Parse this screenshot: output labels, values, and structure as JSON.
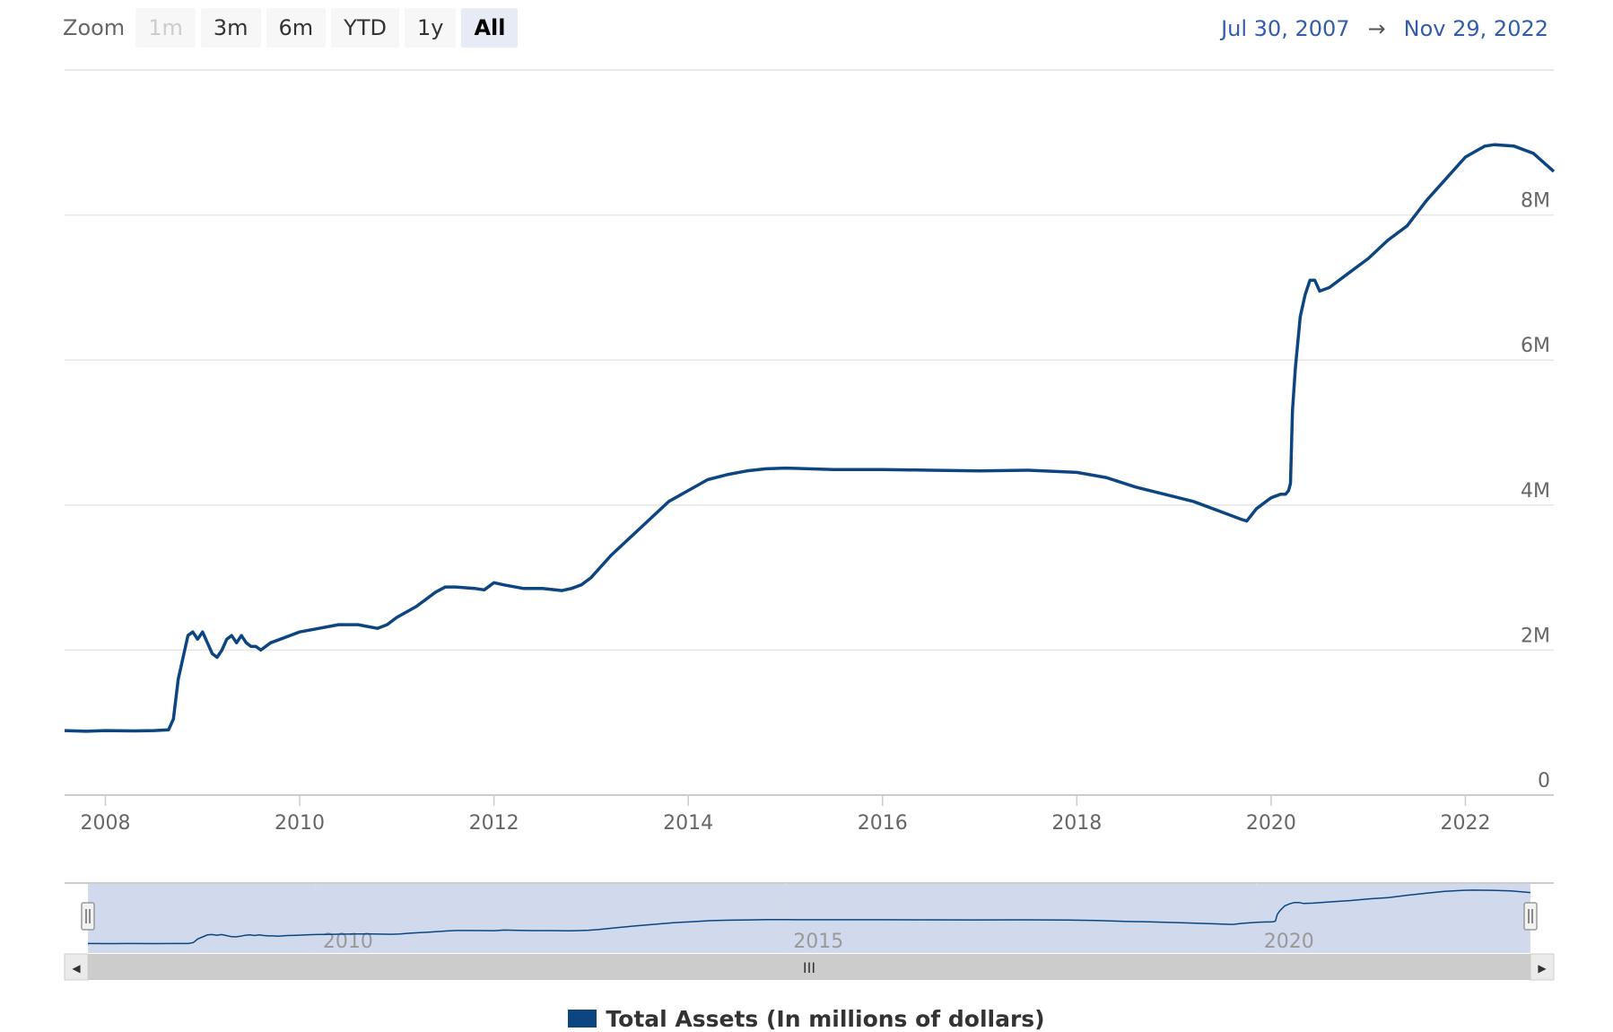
{
  "range_selector": {
    "zoom_label": "Zoom",
    "buttons": [
      {
        "label": "1m",
        "state": "disabled"
      },
      {
        "label": "3m",
        "state": "normal"
      },
      {
        "label": "6m",
        "state": "normal"
      },
      {
        "label": "YTD",
        "state": "normal"
      },
      {
        "label": "1y",
        "state": "normal"
      },
      {
        "label": "All",
        "state": "active"
      }
    ],
    "from_date": "Jul 30, 2007",
    "arrow": "→",
    "to_date": "Nov 29, 2022"
  },
  "navigator": {
    "labels": [
      "2010",
      "2015",
      "2020"
    ],
    "handle_glyph": "Ⅱ",
    "scrollbar_grip": "III",
    "left_arrow": "◀",
    "right_arrow": "▶"
  },
  "colors": {
    "series": "#0d4581",
    "grid": "#e6e6e6",
    "navigator_mask": "rgba(102,133,194,0.3)",
    "scrollbar": "#cccccc"
  },
  "chart_data": {
    "type": "line",
    "title": "",
    "xlabel": "",
    "ylabel": "",
    "y_tick_labels": [
      "0",
      "2M",
      "4M",
      "6M",
      "8M"
    ],
    "x_tick_labels": [
      "2008",
      "2010",
      "2012",
      "2014",
      "2016",
      "2018",
      "2020",
      "2022"
    ],
    "xlim": [
      2007.58,
      2022.91
    ],
    "ylim": [
      0,
      10000000
    ],
    "grid": true,
    "legend_position": "bottom",
    "series": [
      {
        "name": "Total Assets (In millions of dollars)",
        "x": [
          2007.58,
          2007.8,
          2008.0,
          2008.3,
          2008.5,
          2008.65,
          2008.7,
          2008.75,
          2008.8,
          2008.85,
          2008.9,
          2008.95,
          2009.0,
          2009.05,
          2009.1,
          2009.15,
          2009.2,
          2009.25,
          2009.3,
          2009.35,
          2009.4,
          2009.45,
          2009.5,
          2009.55,
          2009.6,
          2009.7,
          2009.8,
          2009.9,
          2010.0,
          2010.2,
          2010.4,
          2010.6,
          2010.8,
          2010.9,
          2011.0,
          2011.2,
          2011.4,
          2011.5,
          2011.6,
          2011.8,
          2011.9,
          2011.97,
          2012.0,
          2012.1,
          2012.3,
          2012.5,
          2012.7,
          2012.8,
          2012.9,
          2013.0,
          2013.2,
          2013.4,
          2013.6,
          2013.8,
          2014.0,
          2014.2,
          2014.4,
          2014.6,
          2014.8,
          2015.0,
          2015.5,
          2016.0,
          2016.5,
          2017.0,
          2017.5,
          2018.0,
          2018.3,
          2018.6,
          2018.9,
          2019.2,
          2019.5,
          2019.7,
          2019.75,
          2019.85,
          2020.0,
          2020.1,
          2020.15,
          2020.18,
          2020.2,
          2020.22,
          2020.25,
          2020.3,
          2020.35,
          2020.4,
          2020.45,
          2020.5,
          2020.6,
          2020.8,
          2021.0,
          2021.2,
          2021.4,
          2021.6,
          2021.8,
          2022.0,
          2022.2,
          2022.3,
          2022.5,
          2022.7,
          2022.91
        ],
        "values": [
          890000,
          880000,
          890000,
          885000,
          890000,
          900000,
          1050000,
          1600000,
          1900000,
          2200000,
          2250000,
          2150000,
          2250000,
          2100000,
          1950000,
          1900000,
          2000000,
          2150000,
          2200000,
          2100000,
          2200000,
          2100000,
          2050000,
          2050000,
          2000000,
          2100000,
          2150000,
          2200000,
          2250000,
          2300000,
          2350000,
          2350000,
          2300000,
          2350000,
          2450000,
          2600000,
          2800000,
          2870000,
          2870000,
          2850000,
          2830000,
          2900000,
          2930000,
          2900000,
          2850000,
          2850000,
          2820000,
          2850000,
          2900000,
          3000000,
          3300000,
          3550000,
          3800000,
          4050000,
          4200000,
          4350000,
          4420000,
          4470000,
          4500000,
          4510000,
          4490000,
          4490000,
          4480000,
          4470000,
          4480000,
          4450000,
          4380000,
          4250000,
          4150000,
          4050000,
          3900000,
          3800000,
          3780000,
          3950000,
          4100000,
          4150000,
          4150000,
          4200000,
          4300000,
          5300000,
          5900000,
          6600000,
          6900000,
          7100000,
          7100000,
          6950000,
          7000000,
          7200000,
          7400000,
          7650000,
          7850000,
          8200000,
          8500000,
          8800000,
          8950000,
          8970000,
          8950000,
          8850000,
          8600000
        ]
      }
    ]
  }
}
